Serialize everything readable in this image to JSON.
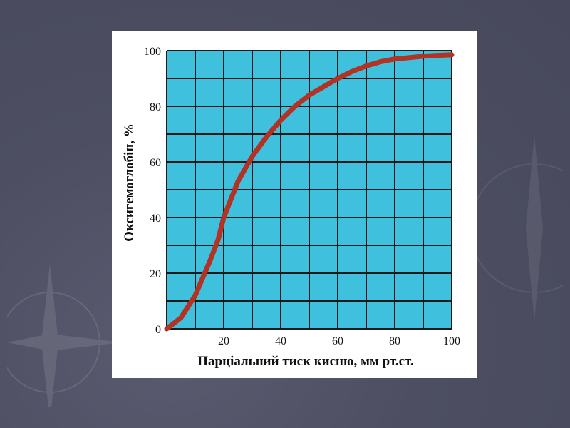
{
  "colors": {
    "slide_background": "#4f5064",
    "panel_background": "#ffffff",
    "plot_fill": "#3fc0dc",
    "grid": "#1a1a1a",
    "curve": "#b33224"
  },
  "chart_data": {
    "type": "line",
    "title": "",
    "xlabel": "Парціальний тиск кисню, мм рт.ст.",
    "ylabel": "Оксигемоглобін, %",
    "xlim": [
      0,
      100
    ],
    "ylim": [
      0,
      100
    ],
    "grid": true,
    "x_grid_step": 10,
    "y_grid_step": 10,
    "x_tick_labels": [
      "20",
      "40",
      "60",
      "80",
      "100"
    ],
    "y_tick_labels": [
      "0",
      "20",
      "40",
      "60",
      "80",
      "100"
    ],
    "series": [
      {
        "x": [
          0,
          5,
          10,
          15,
          18,
          20,
          25,
          30,
          35,
          40,
          45,
          50,
          55,
          60,
          65,
          70,
          75,
          80,
          85,
          90,
          95,
          100
        ],
        "y": [
          0,
          4,
          12,
          24,
          32,
          40,
          53,
          62,
          69,
          75,
          80,
          84,
          87,
          90,
          92.5,
          94.5,
          96,
          97,
          97.5,
          98,
          98.3,
          98.5
        ]
      }
    ]
  }
}
